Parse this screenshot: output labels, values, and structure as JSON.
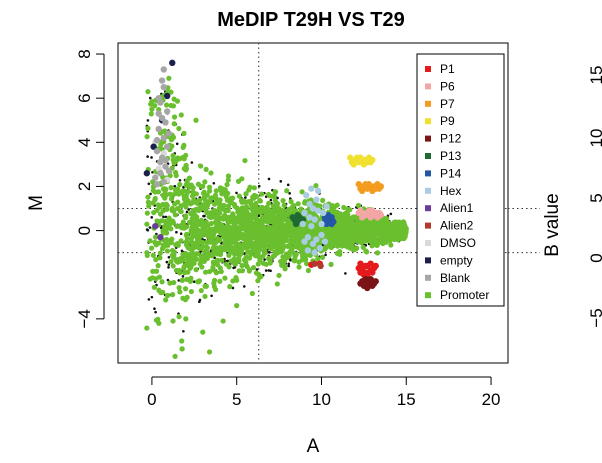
{
  "chart_data": [
    {
      "type": "scatter",
      "title": "MeDIP T29H VS T29",
      "xlabel": "A",
      "ylabel": "M",
      "xlim": [
        -2,
        21
      ],
      "ylim": [
        -6,
        8.5
      ],
      "xticks": [
        0,
        5,
        10,
        15,
        20
      ],
      "yticks": [
        -4,
        0,
        2,
        4,
        6,
        8
      ],
      "ytick_labels": [
        "−4",
        "0",
        "2",
        "4",
        "6",
        "8"
      ],
      "reference_lines": {
        "vertical_x": 6.3,
        "horizontal_y": [
          1,
          -1
        ]
      },
      "legend_position": "top-right",
      "series": [
        {
          "name": "P1",
          "color": "#e41a1c",
          "points": [
            [
              12.3,
              -1.5
            ],
            [
              12.6,
              -1.6
            ],
            [
              12.9,
              -1.5
            ],
            [
              12.4,
              -1.8
            ],
            [
              12.8,
              -1.9
            ],
            [
              13.1,
              -1.7
            ],
            [
              12.5,
              -2.0
            ],
            [
              12.7,
              -1.6
            ],
            [
              13.0,
              -1.9
            ],
            [
              12.2,
              -1.7
            ],
            [
              12.6,
              -1.9
            ],
            [
              12.9,
              -1.8
            ],
            [
              12.4,
              -1.6
            ],
            [
              13.2,
              -1.6
            ],
            [
              12.3,
              -1.9
            ],
            [
              12.7,
              -2.0
            ],
            [
              9.9,
              -1.5
            ],
            [
              9.4,
              -1.55
            ]
          ]
        },
        {
          "name": "P6",
          "color": "#f4a6a6",
          "points": [
            [
              12.2,
              0.8
            ],
            [
              12.5,
              0.7
            ],
            [
              12.8,
              0.9
            ],
            [
              13.1,
              0.7
            ],
            [
              13.4,
              0.8
            ],
            [
              12.4,
              0.6
            ],
            [
              12.7,
              0.8
            ],
            [
              13.0,
              0.9
            ],
            [
              13.3,
              0.6
            ],
            [
              12.6,
              0.7
            ],
            [
              12.9,
              0.6
            ],
            [
              13.2,
              0.8
            ],
            [
              12.3,
              0.9
            ],
            [
              13.5,
              0.7
            ]
          ]
        },
        {
          "name": "P7",
          "color": "#f39c1e",
          "points": [
            [
              12.2,
              2.1
            ],
            [
              12.5,
              2.0
            ],
            [
              12.8,
              2.1
            ],
            [
              13.1,
              2.0
            ],
            [
              13.4,
              1.9
            ],
            [
              12.4,
              1.8
            ],
            [
              12.7,
              1.9
            ],
            [
              13.0,
              1.8
            ],
            [
              13.3,
              2.1
            ],
            [
              12.6,
              2.1
            ],
            [
              12.9,
              2.0
            ],
            [
              13.2,
              1.9
            ],
            [
              12.3,
              1.9
            ],
            [
              13.5,
              2.0
            ]
          ]
        },
        {
          "name": "P9",
          "color": "#f0e130",
          "points": [
            [
              11.7,
              3.3
            ],
            [
              12.0,
              3.2
            ],
            [
              12.3,
              3.3
            ],
            [
              12.6,
              3.2
            ],
            [
              12.9,
              3.1
            ],
            [
              11.9,
              3.0
            ],
            [
              12.2,
              3.1
            ],
            [
              12.5,
              3.0
            ],
            [
              12.8,
              3.3
            ],
            [
              12.1,
              3.3
            ],
            [
              12.4,
              3.2
            ],
            [
              12.7,
              3.1
            ],
            [
              11.8,
              3.1
            ],
            [
              13.0,
              3.2
            ]
          ]
        },
        {
          "name": "P12",
          "color": "#7b1416",
          "points": [
            [
              12.4,
              -2.3
            ],
            [
              12.7,
              -2.4
            ],
            [
              13.0,
              -2.3
            ],
            [
              12.5,
              -2.5
            ],
            [
              12.8,
              -2.5
            ],
            [
              13.1,
              -2.4
            ],
            [
              12.6,
              -2.2
            ],
            [
              12.9,
              -2.2
            ],
            [
              12.3,
              -2.4
            ],
            [
              13.2,
              -2.3
            ],
            [
              12.7,
              -2.6
            ],
            [
              13.0,
              -2.5
            ]
          ]
        },
        {
          "name": "P13",
          "color": "#1f6b33",
          "points": [
            [
              8.4,
              0.5
            ],
            [
              8.6,
              0.7
            ],
            [
              8.8,
              0.4
            ],
            [
              8.5,
              0.3
            ],
            [
              8.7,
              0.6
            ],
            [
              8.9,
              0.5
            ],
            [
              8.3,
              0.6
            ],
            [
              8.6,
              0.4
            ]
          ]
        },
        {
          "name": "P14",
          "color": "#2456a6",
          "points": [
            [
              10.2,
              0.6
            ],
            [
              10.4,
              0.4
            ],
            [
              10.6,
              0.6
            ],
            [
              10.3,
              0.3
            ],
            [
              10.5,
              0.5
            ],
            [
              10.7,
              0.4
            ],
            [
              10.2,
              0.4
            ],
            [
              10.4,
              0.7
            ],
            [
              10.6,
              0.3
            ],
            [
              10.3,
              0.6
            ]
          ]
        },
        {
          "name": "Hex",
          "color": "#a9cce3",
          "points": [
            [
              9.0,
              0.8
            ],
            [
              9.3,
              1.2
            ],
            [
              9.6,
              0.5
            ],
            [
              9.2,
              -0.3
            ],
            [
              9.5,
              -0.6
            ],
            [
              9.8,
              0.9
            ],
            [
              10.0,
              -0.2
            ],
            [
              9.7,
              1.4
            ],
            [
              9.4,
              0.2
            ],
            [
              9.9,
              -0.8
            ],
            [
              9.1,
              1.6
            ],
            [
              10.1,
              0.8
            ],
            [
              9.6,
              -1.0
            ],
            [
              9.3,
              0.6
            ],
            [
              10.2,
              -0.5
            ],
            [
              8.9,
              0.3
            ],
            [
              9.8,
              1.8
            ],
            [
              9.5,
              1.0
            ],
            [
              10.0,
              0.3
            ],
            [
              9.2,
              -0.9
            ],
            [
              9.7,
              -0.4
            ],
            [
              9.4,
              1.9
            ],
            [
              10.3,
              1.1
            ],
            [
              9.0,
              -0.5
            ]
          ]
        },
        {
          "name": "Alien1",
          "color": "#6a3d9a",
          "points": [
            [
              0.2,
              0.2
            ],
            [
              0.5,
              -0.3
            ]
          ]
        },
        {
          "name": "Alien2",
          "color": "#b03a2e",
          "points": [
            [
              9.6,
              -1.5
            ],
            [
              9.95,
              -1.6
            ]
          ]
        },
        {
          "name": "DMSO",
          "color": "#d9d9d9",
          "points": [
            [
              0.4,
              2.8
            ],
            [
              0.7,
              3.5
            ],
            [
              0.2,
              4.0
            ],
            [
              0.9,
              2.3
            ]
          ]
        },
        {
          "name": "empty",
          "color": "#1a1f4b",
          "points": [
            [
              1.2,
              7.6
            ],
            [
              0.1,
              3.8
            ],
            [
              0.6,
              5.0
            ],
            [
              -0.3,
              2.6
            ],
            [
              0.9,
              6.1
            ]
          ]
        },
        {
          "name": "Blank",
          "color": "#a6a6a6",
          "points": [
            [
              0.5,
              3.1
            ],
            [
              0.7,
              4.2
            ],
            [
              0.3,
              3.6
            ],
            [
              0.8,
              2.9
            ],
            [
              0.6,
              5.1
            ],
            [
              0.4,
              4.6
            ],
            [
              0.9,
              3.8
            ],
            [
              0.2,
              2.4
            ],
            [
              0.7,
              6.5
            ],
            [
              0.5,
              5.8
            ],
            [
              0.8,
              4.9
            ],
            [
              0.3,
              2.1
            ],
            [
              0.6,
              3.3
            ],
            [
              1.0,
              4.4
            ],
            [
              0.4,
              6.0
            ],
            [
              0.9,
              5.4
            ],
            [
              0.7,
              7.3
            ],
            [
              0.5,
              2.6
            ],
            [
              0.8,
              3.2
            ],
            [
              0.6,
              6.8
            ],
            [
              0.3,
              4.1
            ],
            [
              1.0,
              2.7
            ],
            [
              0.4,
              5.3
            ],
            [
              0.7,
              2.2
            ]
          ]
        },
        {
          "name": "Promoter",
          "color": "#6abf2e",
          "points": []
        }
      ]
    }
  ],
  "legend": {
    "items": [
      {
        "name": "P1",
        "color": "#e41a1c"
      },
      {
        "name": "P6",
        "color": "#f4a6a6"
      },
      {
        "name": "P7",
        "color": "#f39c1e"
      },
      {
        "name": "P9",
        "color": "#f0e130"
      },
      {
        "name": "P12",
        "color": "#7b1416"
      },
      {
        "name": "P13",
        "color": "#1f6b33"
      },
      {
        "name": "P14",
        "color": "#2456a6"
      },
      {
        "name": "Hex",
        "color": "#a9cce3"
      },
      {
        "name": "Alien1",
        "color": "#6a3d9a"
      },
      {
        "name": "Alien2",
        "color": "#b03a2e"
      },
      {
        "name": "DMSO",
        "color": "#d9d9d9"
      },
      {
        "name": "empty",
        "color": "#1a1f4b"
      },
      {
        "name": "Blank",
        "color": "#a6a6a6"
      },
      {
        "name": "Promoter",
        "color": "#6abf2e"
      }
    ]
  },
  "second_panel": {
    "ylabel": "B value",
    "yticks": [
      "−5",
      "0",
      "5",
      "10",
      "15"
    ]
  }
}
